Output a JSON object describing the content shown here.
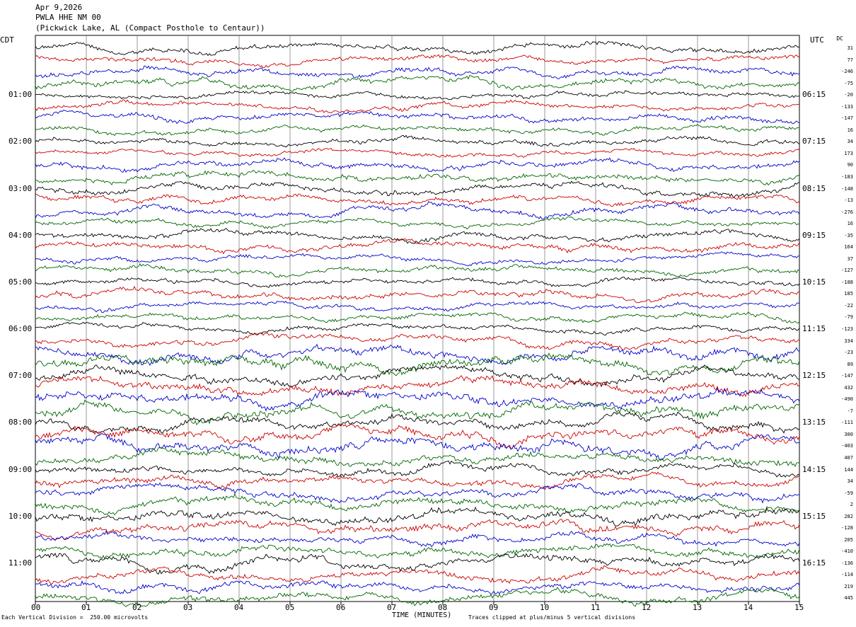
{
  "header": {
    "date": "Apr 9,2026",
    "station": "PWLA HHE NM 00",
    "location": "(Pickwick Lake, AL (Compact Posthole to Centaur))"
  },
  "axis": {
    "left_label": "CDT",
    "right_label": "UTC",
    "right_top_label": "DC",
    "x_title": "TIME (MINUTES)"
  },
  "footer": {
    "scale_note": "Each Vertical Division =  250.00 microvolts",
    "clip_note": "Traces clipped at plus/minus 5 vertical divisions"
  },
  "colors": {
    "trace_cycle": [
      "#000000",
      "#cc0000",
      "#0000cc",
      "#006600"
    ],
    "grid": "#808080"
  },
  "chart_data": {
    "type": "line",
    "x_ticks": [
      "00",
      "01",
      "02",
      "03",
      "04",
      "05",
      "06",
      "07",
      "08",
      "09",
      "10",
      "11",
      "12",
      "13",
      "14",
      "15"
    ],
    "xlim": [
      0,
      15
    ],
    "left_hour_labels": [
      "01:00",
      "02:00",
      "03:00",
      "04:00",
      "05:00",
      "06:00",
      "07:00",
      "08:00",
      "09:00",
      "10:00",
      "11:00"
    ],
    "right_hour_labels": [
      "06:15",
      "07:15",
      "08:15",
      "09:15",
      "10:15",
      "11:15",
      "12:15",
      "13:15",
      "14:15",
      "15:15",
      "16:15"
    ],
    "dc_offsets": [
      "31",
      "77",
      "-246",
      "-75",
      "-20",
      "-133",
      "-147",
      "16",
      "34",
      "173",
      "90",
      "-183",
      "-148",
      "-13",
      "-276",
      "16",
      "-35",
      "164",
      "37",
      "-127",
      "-188",
      "185",
      "-22",
      "-79",
      "-123",
      "334",
      "-23",
      "89",
      "-147",
      "432",
      "-490",
      "-7",
      "-111",
      "300",
      "-403",
      "407",
      "144",
      "34",
      "-59",
      "2",
      "282",
      "-128",
      "205",
      "-410",
      "-136",
      "-114",
      "219",
      "445"
    ],
    "trace_count": 48,
    "minutes_per_trace": 15
  }
}
